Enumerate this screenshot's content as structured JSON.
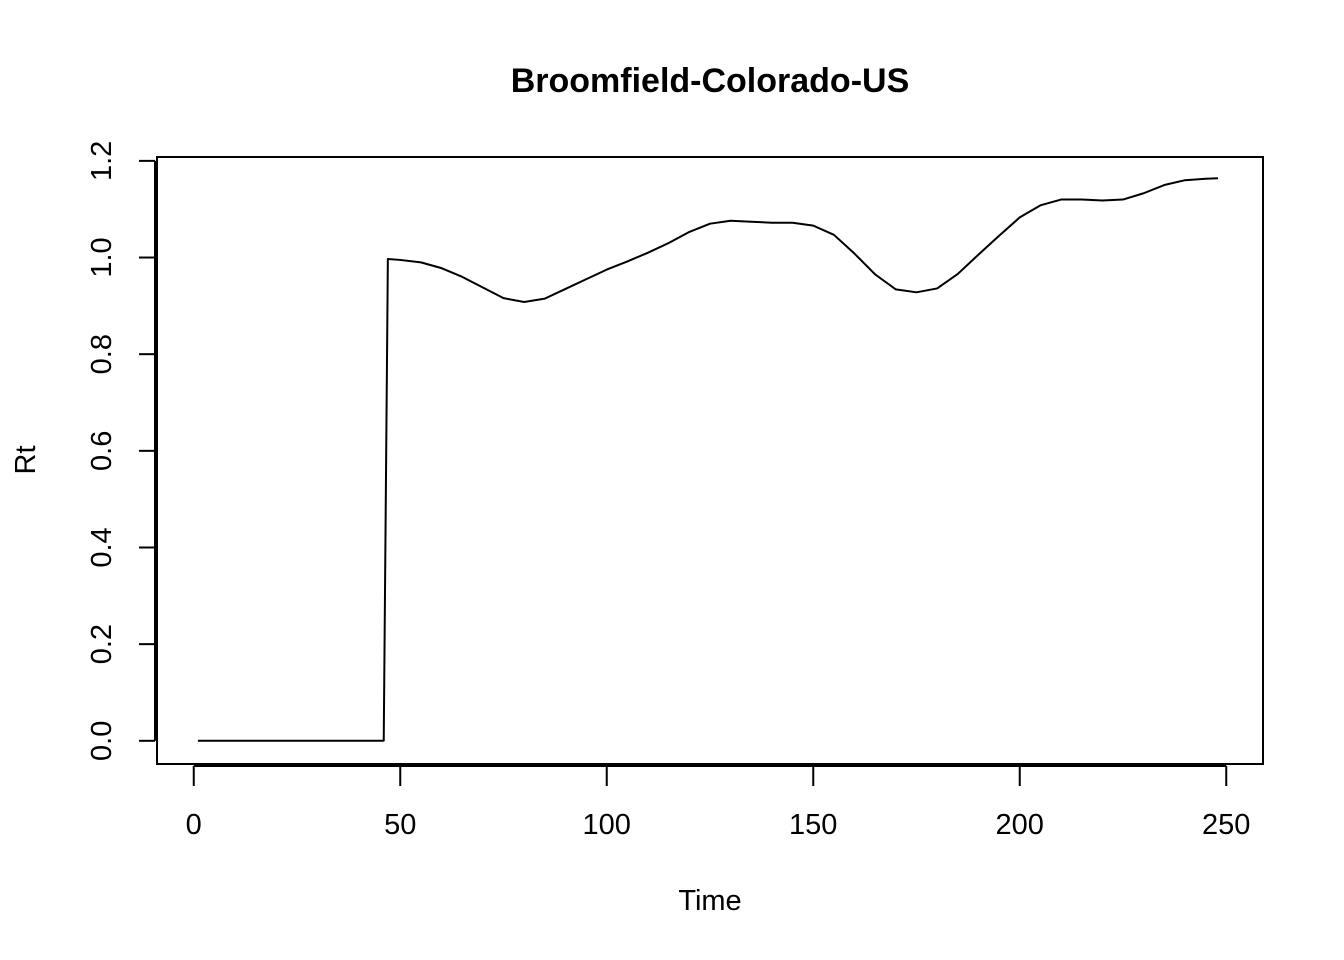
{
  "chart_data": {
    "type": "line",
    "title": "Broomfield-Colorado-US",
    "xlabel": "Time",
    "ylabel": "Rt",
    "xlim": [
      -8.9,
      258.9
    ],
    "ylim": [
      -0.048,
      1.208
    ],
    "xticks": [
      0,
      50,
      100,
      150,
      200,
      250
    ],
    "yticks": [
      0.0,
      0.2,
      0.4,
      0.6,
      0.8,
      1.0,
      1.2
    ],
    "xtick_labels": [
      "0",
      "50",
      "100",
      "150",
      "200",
      "250"
    ],
    "ytick_labels": [
      "0.0",
      "0.2",
      "0.4",
      "0.6",
      "0.8",
      "1.0",
      "1.2"
    ],
    "grid": false,
    "series": [
      {
        "color": "#000000",
        "x": [
          1,
          10,
          20,
          30,
          40,
          46,
          47,
          50,
          55,
          60,
          65,
          70,
          75,
          80,
          85,
          90,
          95,
          100,
          105,
          110,
          115,
          120,
          125,
          130,
          135,
          140,
          145,
          150,
          155,
          160,
          165,
          170,
          175,
          180,
          185,
          190,
          195,
          200,
          205,
          210,
          215,
          220,
          225,
          230,
          235,
          240,
          245,
          248
        ],
        "y": [
          0.0,
          0.0,
          0.0,
          0.0,
          0.0,
          0.0,
          0.997,
          0.995,
          0.99,
          0.978,
          0.96,
          0.938,
          0.916,
          0.908,
          0.915,
          0.935,
          0.955,
          0.975,
          0.992,
          1.01,
          1.03,
          1.053,
          1.07,
          1.076,
          1.074,
          1.072,
          1.072,
          1.066,
          1.047,
          1.008,
          0.965,
          0.934,
          0.928,
          0.936,
          0.966,
          1.006,
          1.045,
          1.083,
          1.108,
          1.12,
          1.12,
          1.118,
          1.12,
          1.133,
          1.15,
          1.16,
          1.163,
          1.164
        ]
      }
    ]
  }
}
